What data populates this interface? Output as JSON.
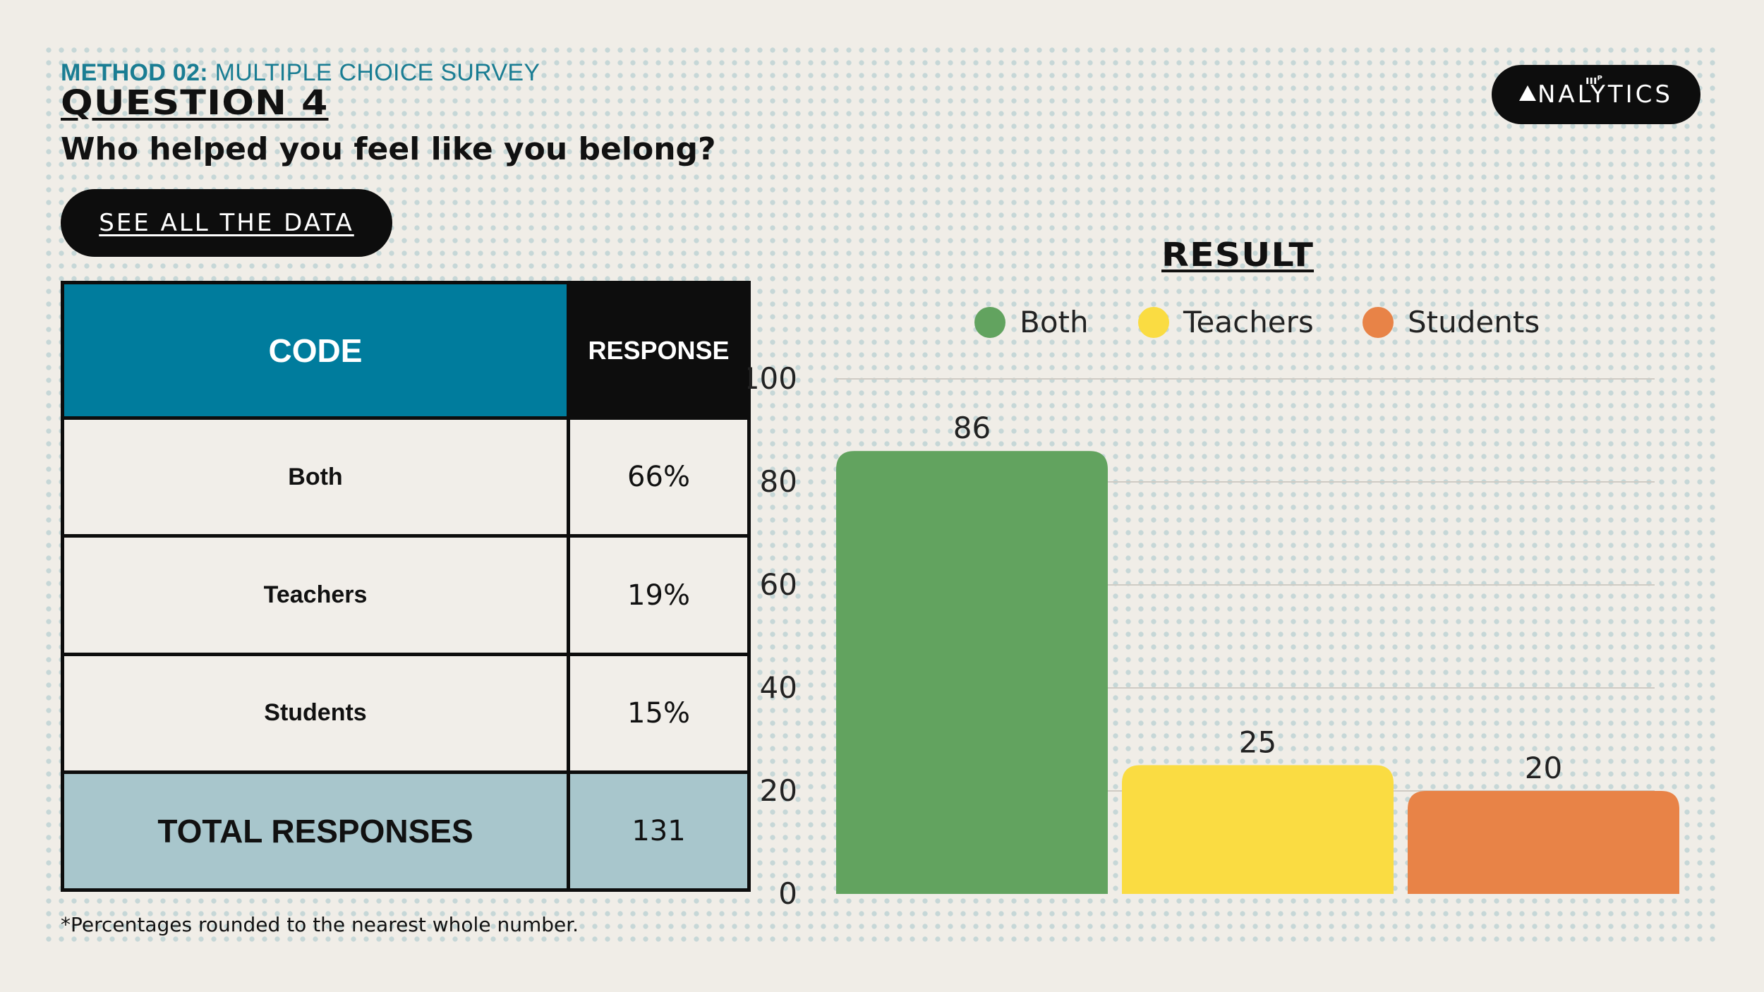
{
  "header": {
    "method_bold": "METHOD 02:",
    "method_rest": " MULTIPLE CHOICE SURVEY",
    "question": "QUESTION 4",
    "prompt": "Who helped you feel like you belong?"
  },
  "see_button": {
    "label": "SEE ALL THE DATA"
  },
  "logo": {
    "text": "NALYTICS",
    "mark": "ıııᴾ"
  },
  "table": {
    "header_code": "CODE",
    "header_response": "RESPONSE",
    "rows": [
      {
        "code": "Both",
        "response": "66%"
      },
      {
        "code": "Teachers",
        "response": "19%"
      },
      {
        "code": "Students",
        "response": "15%"
      }
    ],
    "total_label": "TOTAL RESPONSES",
    "total_value": "131"
  },
  "footnote": "*Percentages rounded to the nearest whole number.",
  "colors": {
    "both": "#62a35f",
    "teachers": "#fadc42",
    "students": "#e88347",
    "accent": "#007c9d",
    "total_bg": "#a8c6cc"
  },
  "chart_data": {
    "type": "bar",
    "title": "RESULT",
    "categories": [
      "Both",
      "Teachers",
      "Students"
    ],
    "values": [
      86,
      25,
      20
    ],
    "data_labels": [
      "86",
      "25",
      "20"
    ],
    "legend": [
      "Both",
      "Teachers",
      "Students"
    ],
    "legend_position": "top",
    "ylim": [
      0,
      100
    ],
    "yticks": [
      0,
      20,
      40,
      60,
      80,
      100
    ],
    "grid": true,
    "xlabel": "",
    "ylabel": ""
  }
}
